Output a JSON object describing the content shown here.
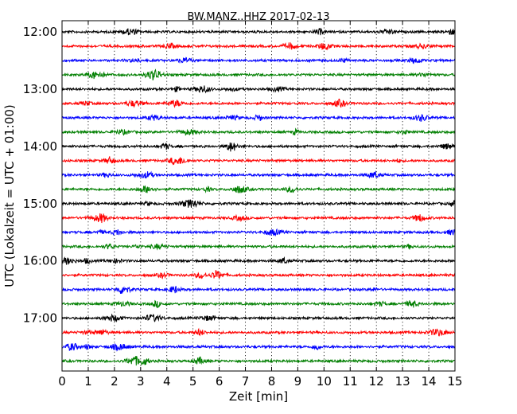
{
  "chart_data": {
    "type": "line",
    "title": "BW.MANZ..HHZ 2017-02-13",
    "xlabel": "Zeit  [min]",
    "ylabel": "UTC (Lokalzeit = UTC + 01:00)",
    "xlim": [
      0,
      15
    ],
    "x_ticks": [
      "0",
      "1",
      "2",
      "3",
      "4",
      "5",
      "6",
      "7",
      "8",
      "9",
      "10",
      "11",
      "12",
      "13",
      "14",
      "15"
    ],
    "y_ticks": [
      "12:00",
      "13:00",
      "14:00",
      "15:00",
      "16:00",
      "17:00"
    ],
    "grid": "vertical dotted lines at each minute",
    "trace_color_cycle": [
      "#000000",
      "#ff0000",
      "#0000ff",
      "#007f00"
    ],
    "traces": [
      {
        "start_utc": "12:00"
      },
      {
        "start_utc": "12:15"
      },
      {
        "start_utc": "12:30"
      },
      {
        "start_utc": "12:45"
      },
      {
        "start_utc": "13:00"
      },
      {
        "start_utc": "13:15"
      },
      {
        "start_utc": "13:30"
      },
      {
        "start_utc": "13:45"
      },
      {
        "start_utc": "14:00"
      },
      {
        "start_utc": "14:15"
      },
      {
        "start_utc": "14:30"
      },
      {
        "start_utc": "14:45"
      },
      {
        "start_utc": "15:00"
      },
      {
        "start_utc": "15:15"
      },
      {
        "start_utc": "15:30"
      },
      {
        "start_utc": "15:45"
      },
      {
        "start_utc": "16:00"
      },
      {
        "start_utc": "16:15"
      },
      {
        "start_utc": "16:30"
      },
      {
        "start_utc": "16:45"
      },
      {
        "start_utc": "17:00"
      },
      {
        "start_utc": "17:15"
      },
      {
        "start_utc": "17:30"
      },
      {
        "start_utc": "17:45"
      }
    ]
  }
}
